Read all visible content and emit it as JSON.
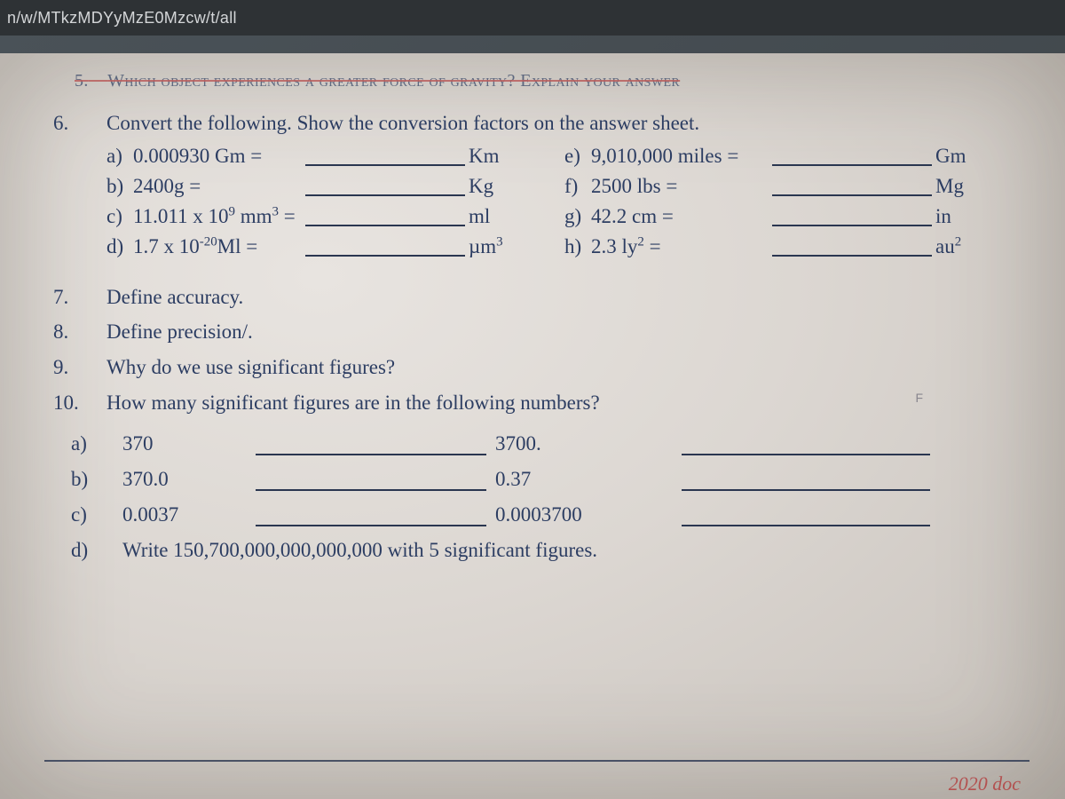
{
  "urlbar": {
    "text": "n/w/MTkzMDYyMzE0Mzcw/t/all"
  },
  "ghost": {
    "label": "5.",
    "text": "Which object experiences a greater force of gravity? Explain your answer"
  },
  "q6": {
    "num": "6.",
    "text": "Convert the following. Show the conversion factors on the answer sheet.",
    "rows": [
      {
        "l1": "a)",
        "expr1": "0.000930 Gm =",
        "unit1": "Km",
        "l2": "e)",
        "expr2": "9,010,000 miles =",
        "unit2": "Gm"
      },
      {
        "l1": "b)",
        "expr1": "2400g =",
        "unit1": "Kg",
        "l2": "f)",
        "expr2": "2500 lbs =",
        "unit2": "Mg"
      },
      {
        "l1": "c)",
        "expr1_html": "11.011 x 10<sup>9</sup> mm<sup>3</sup> =",
        "unit1": "ml",
        "l2": "g)",
        "expr2": "42.2 cm =",
        "unit2": "in"
      },
      {
        "l1": "d)",
        "expr1_html": "1.7 x 10<sup>-20</sup>Ml =",
        "unit1_html": "µm<sup>3</sup>",
        "l2": "h)",
        "expr2_html": "2.3 ly<sup>2</sup> =",
        "unit2_html": "au<sup>2</sup>"
      }
    ]
  },
  "q7": {
    "num": "7.",
    "text": "Define accuracy."
  },
  "q8": {
    "num": "8.",
    "text": "Define precision/."
  },
  "q9": {
    "num": "9.",
    "text": "Why do we use significant figures?"
  },
  "q10": {
    "num": "10.",
    "text": "How many significant figures are in the following numbers?"
  },
  "sig": {
    "rows": [
      {
        "lab": "a)",
        "v1": "370",
        "v2": "3700."
      },
      {
        "lab": "b)",
        "v1": "370.0",
        "v2": "0.37"
      },
      {
        "lab": "c)",
        "v1": "0.0037",
        "v2": "0.0003700"
      }
    ],
    "d": {
      "lab": "d)",
      "text": "Write 150,700,000,000,000,000 with 5 significant figures."
    }
  },
  "tick": "F",
  "footer": "2020 doc",
  "colors": {
    "url_bg": "#2e3235",
    "url_fg": "#d4d6d8",
    "paper_light": "#e8e4e0",
    "paper_dark": "#c7c1bb",
    "ink": "#2c3d62",
    "red": "#b33b3b",
    "font_size_body": 23,
    "font_size_url": 18
  }
}
